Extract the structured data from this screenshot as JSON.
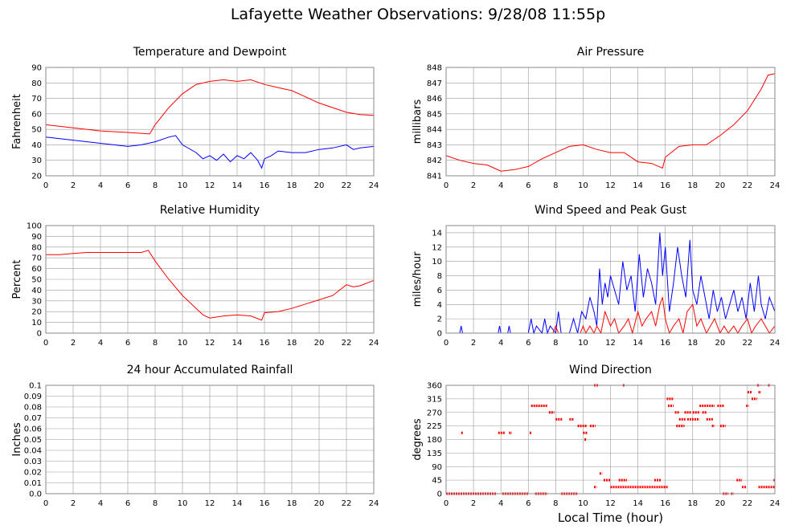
{
  "title": "Lafayette Weather Observations: 9/28/08 11:55p",
  "colors": {
    "red": "#ff0000",
    "blue": "#0000ff",
    "grid": "#999999",
    "frame": "#888888"
  },
  "chart_data": [
    {
      "id": "temp",
      "type": "line",
      "title": "Temperature and Dewpoint",
      "xlabel": "",
      "ylabel": "Fahrenheit",
      "xlim": [
        0,
        24
      ],
      "ylim": [
        20,
        90
      ],
      "xticks": [
        0,
        2,
        4,
        6,
        8,
        10,
        12,
        14,
        16,
        18,
        20,
        22,
        24
      ],
      "yticks": [
        20,
        30,
        40,
        50,
        60,
        70,
        80,
        90
      ],
      "series": [
        {
          "color": "#ff0000",
          "x": [
            0,
            2,
            4,
            6,
            7.6,
            8,
            9,
            10,
            11,
            12,
            13,
            14,
            15,
            16,
            17,
            18,
            19,
            20,
            21,
            22,
            23,
            24
          ],
          "y": [
            53,
            51,
            49,
            48,
            47,
            53,
            64,
            73,
            79,
            81,
            82,
            81,
            82,
            79,
            77,
            75,
            71,
            67,
            64,
            61,
            59.5,
            59
          ]
        },
        {
          "color": "#0000ff",
          "x": [
            0,
            2,
            4,
            6,
            7,
            8,
            9,
            9.5,
            10,
            11,
            11.5,
            12,
            12.5,
            13,
            13.5,
            14,
            14.5,
            15,
            15.5,
            15.8,
            16,
            16.5,
            17,
            18,
            19,
            20,
            21,
            22,
            22.5,
            23,
            24
          ],
          "y": [
            45,
            43,
            41,
            39,
            40,
            42,
            45,
            46,
            40,
            35,
            31,
            33,
            30,
            34,
            29,
            33,
            31,
            35,
            30,
            25,
            31,
            33,
            36,
            35,
            35,
            37,
            38,
            40,
            37,
            38,
            39
          ]
        }
      ]
    },
    {
      "id": "pressure",
      "type": "line",
      "title": "Air Pressure",
      "xlabel": "",
      "ylabel": "millibars",
      "xlim": [
        0,
        24
      ],
      "ylim": [
        841,
        848
      ],
      "xticks": [
        0,
        2,
        4,
        6,
        8,
        10,
        12,
        14,
        16,
        18,
        20,
        22,
        24
      ],
      "yticks": [
        841,
        842,
        843,
        844,
        845,
        846,
        847,
        848
      ],
      "series": [
        {
          "color": "#ff0000",
          "x": [
            0,
            1,
            2,
            3,
            4,
            5,
            6,
            7,
            8,
            9,
            10,
            11,
            12,
            13,
            14,
            15,
            15.8,
            16,
            17,
            18,
            19,
            20,
            21,
            22,
            23,
            23.5,
            24
          ],
          "y": [
            842.3,
            842.0,
            841.8,
            841.7,
            841.3,
            841.4,
            841.6,
            842.1,
            842.5,
            842.9,
            843.0,
            842.7,
            842.5,
            842.5,
            841.9,
            841.8,
            841.5,
            842.2,
            842.9,
            843.0,
            843.0,
            843.6,
            844.3,
            845.2,
            846.6,
            847.5,
            847.6
          ]
        }
      ]
    },
    {
      "id": "humidity",
      "type": "line",
      "title": "Relative Humidity",
      "xlabel": "",
      "ylabel": "Percent",
      "xlim": [
        0,
        24
      ],
      "ylim": [
        0,
        100
      ],
      "xticks": [
        0,
        2,
        4,
        6,
        8,
        10,
        12,
        14,
        16,
        18,
        20,
        22,
        24
      ],
      "yticks": [
        0,
        10,
        20,
        30,
        40,
        50,
        60,
        70,
        80,
        90,
        100
      ],
      "series": [
        {
          "color": "#ff0000",
          "x": [
            0,
            1,
            2,
            3,
            4,
            5,
            6,
            7,
            7.5,
            8,
            9,
            10,
            11,
            11.5,
            12,
            13,
            14,
            15,
            15.8,
            16,
            17,
            18,
            19,
            20,
            21,
            22,
            22.5,
            23,
            24
          ],
          "y": [
            73,
            73,
            74,
            75,
            75,
            75,
            75,
            75,
            77,
            67,
            50,
            35,
            23,
            17,
            14,
            16,
            17,
            16,
            12,
            19,
            20,
            23,
            27,
            31,
            35,
            45,
            43,
            44,
            49
          ]
        }
      ]
    },
    {
      "id": "wind",
      "type": "line",
      "title": "Wind Speed and Peak Gust",
      "xlabel": "",
      "ylabel": "miles/hour",
      "xlim": [
        0,
        24
      ],
      "ylim": [
        0,
        15
      ],
      "xticks": [
        0,
        2,
        4,
        6,
        8,
        10,
        12,
        14,
        16,
        18,
        20,
        22,
        24
      ],
      "yticks": [
        0,
        2,
        4,
        6,
        8,
        10,
        12,
        14
      ],
      "series": [
        {
          "color": "#0000ff",
          "x": [
            0,
            1,
            1.1,
            1.2,
            3.8,
            3.9,
            4,
            4.5,
            4.6,
            4.7,
            6,
            6.2,
            6.4,
            6.6,
            7,
            7.2,
            7.4,
            7.6,
            8,
            8.2,
            8.4,
            9,
            9.3,
            9.6,
            9.9,
            10.2,
            10.5,
            10.8,
            11,
            11.2,
            11.4,
            11.6,
            11.8,
            12,
            12.3,
            12.6,
            12.9,
            13.2,
            13.5,
            13.8,
            14.1,
            14.4,
            14.7,
            15,
            15.3,
            15.6,
            15.8,
            16,
            16.3,
            16.6,
            16.9,
            17.2,
            17.5,
            17.8,
            18,
            18.3,
            18.6,
            18.9,
            19.2,
            19.5,
            19.8,
            20.1,
            20.4,
            20.7,
            21,
            21.3,
            21.6,
            21.9,
            22.2,
            22.5,
            22.8,
            23,
            23.3,
            23.6,
            24
          ],
          "y": [
            0,
            0,
            1,
            0,
            0,
            1,
            0,
            0,
            1,
            0,
            0,
            2,
            0,
            1,
            0,
            2,
            0,
            1,
            0,
            3,
            0,
            0,
            2,
            0,
            3,
            2,
            5,
            3,
            1,
            9,
            4,
            7,
            5,
            8,
            6,
            4,
            10,
            6,
            8,
            3,
            11,
            5,
            9,
            7,
            4,
            14,
            8,
            12,
            3,
            7,
            12,
            8,
            5,
            13,
            6,
            4,
            8,
            5,
            2,
            6,
            3,
            5,
            2,
            4,
            6,
            3,
            5,
            2,
            7,
            3,
            8,
            4,
            2,
            5,
            3
          ]
        },
        {
          "color": "#ff0000",
          "x": [
            0,
            7.8,
            8,
            8.2,
            9.8,
            10,
            10.2,
            10.5,
            10.8,
            11,
            11.3,
            11.6,
            12,
            12.3,
            12.6,
            13,
            13.3,
            13.6,
            14,
            14.3,
            14.6,
            15,
            15.3,
            15.6,
            15.8,
            16,
            16.3,
            16.6,
            17,
            17.3,
            17.6,
            18,
            18.3,
            18.6,
            19,
            19.3,
            19.6,
            20,
            20.3,
            20.6,
            21,
            21.3,
            21.6,
            22,
            22.3,
            22.6,
            23,
            23.3,
            23.6,
            24
          ],
          "y": [
            0,
            0,
            1,
            0,
            0,
            1,
            0,
            1,
            0,
            1,
            0,
            3,
            1,
            2,
            0,
            1,
            2,
            0,
            3,
            1,
            2,
            3,
            1,
            4,
            5,
            2,
            0,
            1,
            2,
            0,
            3,
            4,
            1,
            2,
            0,
            1,
            2,
            0,
            1,
            0,
            1,
            0,
            1,
            2,
            0,
            1,
            2,
            1,
            0,
            1
          ]
        }
      ]
    },
    {
      "id": "rain",
      "type": "line",
      "title": "24 hour Accumulated Rainfall",
      "xlabel": "",
      "ylabel": "Inches",
      "xlim": [
        0,
        24
      ],
      "ylim": [
        0,
        0.1
      ],
      "xticks": [
        0,
        2,
        4,
        6,
        8,
        10,
        12,
        14,
        16,
        18,
        20,
        22,
        24
      ],
      "yticks": [
        0,
        0.01,
        0.02,
        0.03,
        0.04,
        0.05,
        0.06,
        0.07,
        0.08,
        0.09,
        0.1
      ],
      "ytick_labels": [
        "0.0",
        "0.01",
        "0.02",
        "0.03",
        "0.04",
        "0.05",
        "0.06",
        "0.07",
        "0.08",
        "0.09",
        "0.1"
      ],
      "series": [
        {
          "color": "#ff0000",
          "x": [
            0,
            24
          ],
          "y": [
            0,
            0
          ]
        }
      ]
    },
    {
      "id": "direction",
      "type": "scatter",
      "title": "Wind Direction",
      "xlabel": "Local Time (hour)",
      "ylabel": "degrees",
      "xlim": [
        0,
        24
      ],
      "ylim": [
        0,
        360
      ],
      "xticks": [
        0,
        2,
        4,
        6,
        8,
        10,
        12,
        14,
        16,
        18,
        20,
        22,
        24
      ],
      "yticks": [
        0,
        45,
        90,
        135,
        180,
        225,
        270,
        315,
        360
      ],
      "series": [
        {
          "color": "#ff0000",
          "segments": [
            [
              0,
              3.7,
              0
            ],
            [
              4.1,
              6.0,
              0
            ],
            [
              6.5,
              7.4,
              0
            ],
            [
              8.4,
              9.6,
              0
            ],
            [
              3.8,
              4.3,
              202
            ],
            [
              4.6,
              4.8,
              202
            ],
            [
              1.1,
              1.2,
              202
            ],
            [
              6.1,
              6.2,
              202
            ],
            [
              6.2,
              7.4,
              292
            ],
            [
              7.5,
              7.9,
              270
            ],
            [
              8.0,
              8.5,
              247
            ],
            [
              9.0,
              9.3,
              247
            ],
            [
              9.6,
              10.3,
              225
            ],
            [
              10.5,
              10.9,
              225
            ],
            [
              10.0,
              10.3,
              202
            ],
            [
              10.1,
              10.2,
              180
            ],
            [
              10.8,
              11.1,
              360
            ],
            [
              12.9,
              13.0,
              360
            ],
            [
              10.8,
              11.0,
              22
            ],
            [
              11.2,
              11.4,
              67
            ],
            [
              11.5,
              12.0,
              45
            ],
            [
              12.0,
              16.2,
              22
            ],
            [
              12.6,
              13.2,
              45
            ],
            [
              15.2,
              15.7,
              45
            ],
            [
              16.1,
              16.6,
              315
            ],
            [
              16.2,
              16.6,
              292
            ],
            [
              16.7,
              17.0,
              270
            ],
            [
              16.8,
              17.4,
              225
            ],
            [
              17.0,
              17.5,
              247
            ],
            [
              17.4,
              17.9,
              270
            ],
            [
              17.6,
              18.5,
              247
            ],
            [
              18.0,
              18.5,
              270
            ],
            [
              18.5,
              19.6,
              292
            ],
            [
              18.7,
              19.0,
              270
            ],
            [
              19.0,
              19.5,
              247
            ],
            [
              19.4,
              19.6,
              225
            ],
            [
              19.8,
              20.3,
              292
            ],
            [
              20.0,
              20.4,
              225
            ],
            [
              20.2,
              20.6,
              0
            ],
            [
              20.8,
              21.0,
              0
            ],
            [
              21.2,
              21.6,
              45
            ],
            [
              21.6,
              21.9,
              22
            ],
            [
              21.9,
              22.1,
              292
            ],
            [
              22.0,
              22.3,
              337
            ],
            [
              22.3,
              22.7,
              315
            ],
            [
              22.8,
              23.0,
              337
            ],
            [
              22.7,
              22.9,
              360
            ],
            [
              23.5,
              23.6,
              360
            ],
            [
              22.8,
              24.0,
              22
            ],
            [
              23.9,
              24.0,
              45
            ]
          ]
        }
      ]
    }
  ]
}
